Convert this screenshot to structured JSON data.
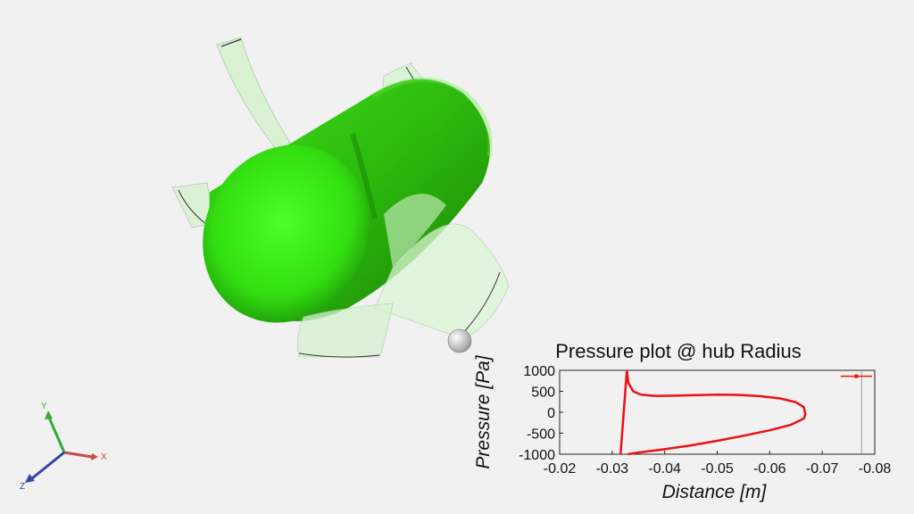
{
  "viewport": {
    "background": "#f1f1f1",
    "model": {
      "hub_color": "#33dd11",
      "blade_color": "#d6f2d0",
      "probe_color": "#e8e8e8"
    }
  },
  "triad": {
    "x_label": "X",
    "y_label": "Y",
    "z_label": "Z",
    "x_color": "#cc4444",
    "y_color": "#33aa33",
    "z_color": "#3344aa"
  },
  "chart_data": {
    "type": "line",
    "title": "Pressure plot @ hub Radius",
    "xlabel": "Distance [m]",
    "ylabel": "Pressure [Pa]",
    "xlim": [
      -0.02,
      -0.08
    ],
    "ylim": [
      -1000,
      1000
    ],
    "x_ticks": [
      "-0.02",
      "-0.03",
      "-0.04",
      "-0.05",
      "-0.06",
      "-0.07",
      "-0.08"
    ],
    "y_ticks": [
      "1000",
      "500",
      "0",
      "-500",
      "-1000"
    ],
    "color": "#ee1111",
    "series": [
      {
        "values": [
          [
            -0.0328,
            1000
          ],
          [
            -0.0331,
            700
          ],
          [
            -0.034,
            500
          ],
          [
            -0.0355,
            420
          ],
          [
            -0.038,
            390
          ],
          [
            -0.042,
            395
          ],
          [
            -0.046,
            410
          ],
          [
            -0.05,
            420
          ],
          [
            -0.054,
            415
          ],
          [
            -0.058,
            385
          ],
          [
            -0.062,
            330
          ],
          [
            -0.065,
            240
          ],
          [
            -0.0665,
            120
          ],
          [
            -0.0668,
            -50
          ],
          [
            -0.0665,
            -150
          ],
          [
            -0.064,
            -300
          ],
          [
            -0.06,
            -430
          ],
          [
            -0.055,
            -560
          ],
          [
            -0.05,
            -680
          ],
          [
            -0.045,
            -790
          ],
          [
            -0.04,
            -880
          ],
          [
            -0.035,
            -960
          ],
          [
            -0.033,
            -1000
          ]
        ]
      },
      {
        "values": [
          [
            -0.0328,
            1000
          ],
          [
            -0.0322,
            0
          ],
          [
            -0.0316,
            -1000
          ]
        ]
      }
    ],
    "legend_marker": {
      "x": [
        -0.0735,
        -0.0795
      ],
      "y": 860
    },
    "vertical_marker_x": -0.0775,
    "grid": false
  }
}
